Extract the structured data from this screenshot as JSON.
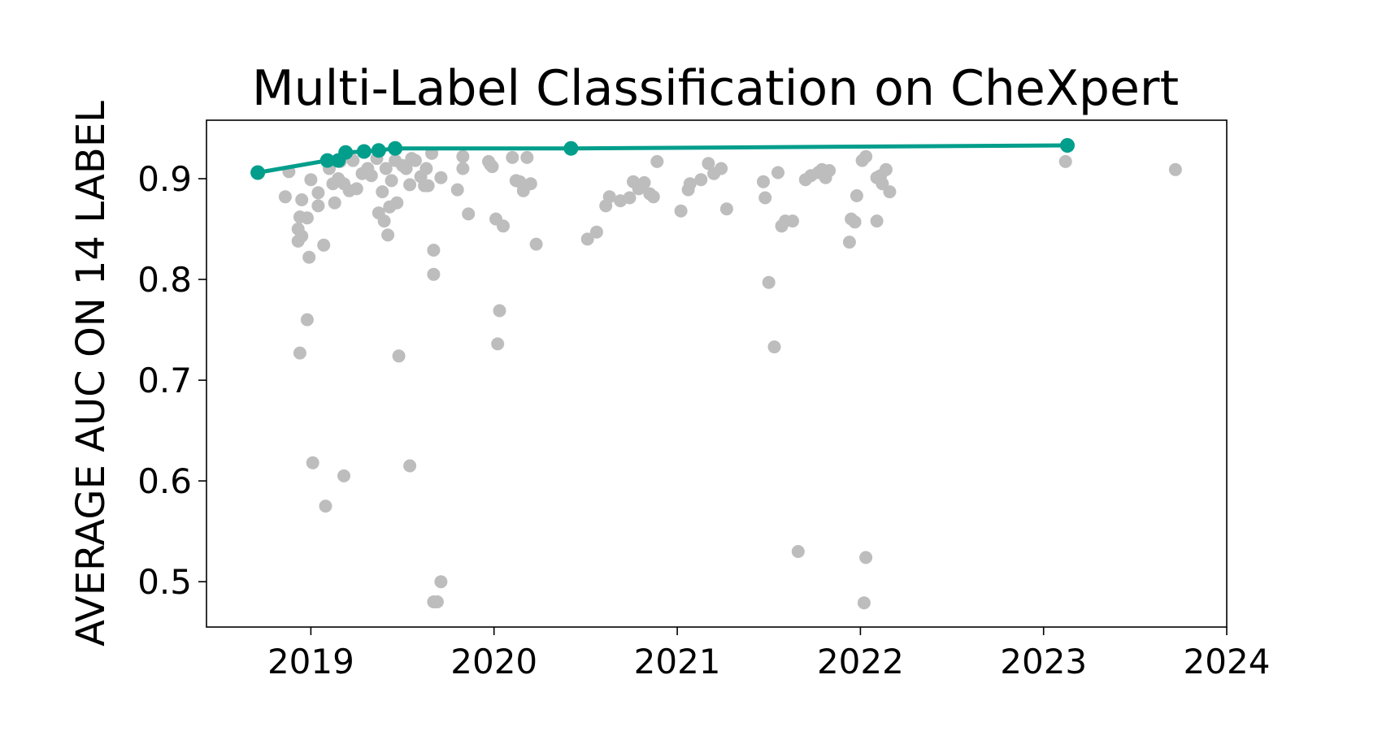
{
  "chart_data": {
    "type": "scatter",
    "title": "Multi-Label Classification on CheXpert",
    "xlabel": "",
    "ylabel": "AVERAGE AUC ON 14 LABEL",
    "xlim": [
      2018.43,
      2024.0
    ],
    "ylim": [
      0.455,
      0.958
    ],
    "xticks": [
      2019,
      2020,
      2021,
      2022,
      2023,
      2024
    ],
    "xtick_labels": [
      "2019",
      "2020",
      "2021",
      "2022",
      "2023",
      "2024"
    ],
    "yticks": [
      0.5,
      0.6,
      0.7,
      0.8,
      0.9
    ],
    "ytick_labels": [
      "0.5",
      "0.6",
      "0.7",
      "0.8",
      "0.9"
    ],
    "grid": false,
    "colors": {
      "scatter": "#bdbdbd",
      "frontier": "#029e8c",
      "axis": "#000000"
    },
    "series": [
      {
        "kind": "scatter",
        "points": [
          [
            2018.88,
            0.907
          ],
          [
            2018.86,
            0.882
          ],
          [
            2018.94,
            0.862
          ],
          [
            2018.95,
            0.879
          ],
          [
            2018.93,
            0.85
          ],
          [
            2018.93,
            0.838
          ],
          [
            2018.95,
            0.843
          ],
          [
            2018.98,
            0.861
          ],
          [
            2018.99,
            0.822
          ],
          [
            2018.98,
            0.76
          ],
          [
            2018.94,
            0.727
          ],
          [
            2019.01,
            0.618
          ],
          [
            2019.0,
            0.899
          ],
          [
            2019.04,
            0.886
          ],
          [
            2019.04,
            0.873
          ],
          [
            2019.07,
            0.834
          ],
          [
            2019.08,
            0.575
          ],
          [
            2019.18,
            0.605
          ],
          [
            2019.1,
            0.91
          ],
          [
            2019.12,
            0.895
          ],
          [
            2019.13,
            0.876
          ],
          [
            2019.15,
            0.9
          ],
          [
            2019.16,
            0.917
          ],
          [
            2019.18,
            0.895
          ],
          [
            2019.21,
            0.888
          ],
          [
            2019.23,
            0.918
          ],
          [
            2019.25,
            0.89
          ],
          [
            2019.28,
            0.905
          ],
          [
            2019.31,
            0.91
          ],
          [
            2019.33,
            0.903
          ],
          [
            2019.36,
            0.92
          ],
          [
            2019.37,
            0.866
          ],
          [
            2019.39,
            0.887
          ],
          [
            2019.4,
            0.858
          ],
          [
            2019.41,
            0.91
          ],
          [
            2019.42,
            0.844
          ],
          [
            2019.43,
            0.872
          ],
          [
            2019.44,
            0.898
          ],
          [
            2019.46,
            0.918
          ],
          [
            2019.47,
            0.876
          ],
          [
            2019.48,
            0.724
          ],
          [
            2019.5,
            0.913
          ],
          [
            2019.52,
            0.91
          ],
          [
            2019.54,
            0.894
          ],
          [
            2019.54,
            0.615
          ],
          [
            2019.55,
            0.92
          ],
          [
            2019.57,
            0.918
          ],
          [
            2019.6,
            0.902
          ],
          [
            2019.62,
            0.893
          ],
          [
            2019.63,
            0.91
          ],
          [
            2019.64,
            0.893
          ],
          [
            2019.66,
            0.925
          ],
          [
            2019.67,
            0.829
          ],
          [
            2019.67,
            0.805
          ],
          [
            2019.67,
            0.48
          ],
          [
            2019.69,
            0.48
          ],
          [
            2019.71,
            0.5
          ],
          [
            2019.71,
            0.901
          ],
          [
            2019.8,
            0.889
          ],
          [
            2019.83,
            0.91
          ],
          [
            2019.83,
            0.922
          ],
          [
            2019.86,
            0.865
          ],
          [
            2019.97,
            0.917
          ],
          [
            2019.98,
            0.914
          ],
          [
            2019.99,
            0.912
          ],
          [
            2020.01,
            0.86
          ],
          [
            2020.03,
            0.769
          ],
          [
            2020.02,
            0.736
          ],
          [
            2020.05,
            0.853
          ],
          [
            2020.1,
            0.921
          ],
          [
            2020.12,
            0.898
          ],
          [
            2020.14,
            0.897
          ],
          [
            2020.16,
            0.888
          ],
          [
            2020.18,
            0.921
          ],
          [
            2020.2,
            0.895
          ],
          [
            2020.23,
            0.835
          ],
          [
            2020.51,
            0.84
          ],
          [
            2020.56,
            0.847
          ],
          [
            2020.61,
            0.873
          ],
          [
            2020.63,
            0.882
          ],
          [
            2020.69,
            0.878
          ],
          [
            2020.74,
            0.881
          ],
          [
            2020.76,
            0.897
          ],
          [
            2020.79,
            0.89
          ],
          [
            2020.82,
            0.896
          ],
          [
            2020.85,
            0.885
          ],
          [
            2020.87,
            0.882
          ],
          [
            2020.89,
            0.917
          ],
          [
            2021.02,
            0.868
          ],
          [
            2021.06,
            0.889
          ],
          [
            2021.07,
            0.895
          ],
          [
            2021.13,
            0.899
          ],
          [
            2021.17,
            0.915
          ],
          [
            2021.2,
            0.905
          ],
          [
            2021.24,
            0.91
          ],
          [
            2021.27,
            0.87
          ],
          [
            2021.47,
            0.897
          ],
          [
            2021.48,
            0.881
          ],
          [
            2021.5,
            0.797
          ],
          [
            2021.53,
            0.733
          ],
          [
            2021.55,
            0.906
          ],
          [
            2021.57,
            0.853
          ],
          [
            2021.59,
            0.858
          ],
          [
            2021.63,
            0.858
          ],
          [
            2021.66,
            0.53
          ],
          [
            2021.7,
            0.899
          ],
          [
            2021.73,
            0.903
          ],
          [
            2021.77,
            0.906
          ],
          [
            2021.79,
            0.909
          ],
          [
            2021.81,
            0.901
          ],
          [
            2021.83,
            0.908
          ],
          [
            2021.94,
            0.837
          ],
          [
            2021.95,
            0.86
          ],
          [
            2021.97,
            0.857
          ],
          [
            2021.98,
            0.883
          ],
          [
            2022.01,
            0.918
          ],
          [
            2022.03,
            0.922
          ],
          [
            2022.03,
            0.524
          ],
          [
            2022.02,
            0.479
          ],
          [
            2022.09,
            0.858
          ],
          [
            2022.09,
            0.901
          ],
          [
            2022.11,
            0.903
          ],
          [
            2022.12,
            0.895
          ],
          [
            2022.14,
            0.909
          ],
          [
            2022.16,
            0.887
          ],
          [
            2023.12,
            0.917
          ],
          [
            2023.72,
            0.909
          ]
        ]
      },
      {
        "kind": "line",
        "points": [
          [
            2018.71,
            0.906
          ],
          [
            2019.09,
            0.918
          ],
          [
            2019.15,
            0.918
          ],
          [
            2019.19,
            0.926
          ],
          [
            2019.29,
            0.927
          ],
          [
            2019.37,
            0.928
          ],
          [
            2019.46,
            0.93
          ],
          [
            2020.42,
            0.93
          ],
          [
            2023.13,
            0.933
          ]
        ]
      }
    ]
  }
}
